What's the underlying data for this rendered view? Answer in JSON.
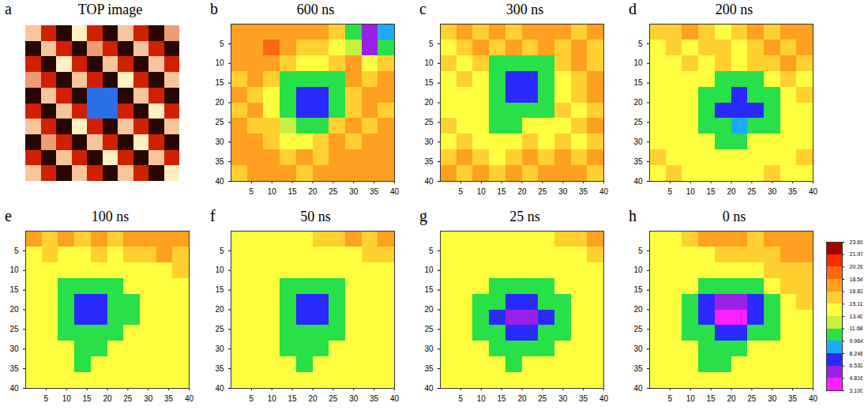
{
  "chart_data": [
    {
      "label": "a",
      "title": "TOP image",
      "type": "image",
      "tick_labels": false,
      "cells": [
        [
          0.9,
          0.5,
          0.1,
          1.0,
          0.5,
          0.1,
          0.9,
          0.5,
          0.1,
          0.8
        ],
        [
          0.1,
          0.9,
          0.5,
          0.1,
          0.8,
          0.5,
          0.1,
          0.9,
          0.5,
          0.1
        ],
        [
          0.5,
          0.1,
          1.0,
          0.5,
          0.1,
          0.9,
          0.5,
          0.1,
          0.9,
          0.5
        ],
        [
          0.8,
          0.5,
          0.1,
          0.9,
          0.5,
          0.1,
          1.0,
          0.5,
          0.1,
          0.9
        ],
        [
          0.1,
          0.9,
          0.5,
          0.1,
          -1,
          -1,
          0.1,
          0.9,
          0.5,
          0.1
        ],
        [
          0.5,
          0.1,
          0.9,
          0.5,
          -1,
          -1,
          0.5,
          0.1,
          1.0,
          0.5
        ],
        [
          0.9,
          0.5,
          0.1,
          1.0,
          0.5,
          0.1,
          0.9,
          0.5,
          0.1,
          0.9
        ],
        [
          0.1,
          0.8,
          0.5,
          0.1,
          0.9,
          0.5,
          0.1,
          1.0,
          0.5,
          0.1
        ],
        [
          0.5,
          0.1,
          0.9,
          0.5,
          0.1,
          1.0,
          0.5,
          0.1,
          0.9,
          0.5
        ],
        [
          0.9,
          0.5,
          0.1,
          0.9,
          0.5,
          0.1,
          0.9,
          0.5,
          0.1,
          1.0
        ]
      ]
    },
    {
      "label": "b",
      "title": "600 ns",
      "type": "heatmap",
      "xlim": [
        0,
        40
      ],
      "ylim": [
        0,
        40
      ],
      "xticks": [
        5,
        10,
        15,
        20,
        25,
        30,
        35,
        40
      ],
      "yticks": [
        5,
        10,
        15,
        20,
        25,
        30,
        35,
        40
      ],
      "cells": [
        [
          17,
          18,
          17,
          18,
          17,
          17,
          16,
          10,
          5,
          9
        ],
        [
          18,
          17,
          19,
          17,
          16,
          16,
          15,
          12,
          6,
          11
        ],
        [
          17,
          18,
          17,
          16,
          15,
          15,
          16,
          17,
          14,
          16
        ],
        [
          16,
          17,
          16,
          11,
          10,
          10,
          11,
          17,
          16,
          17
        ],
        [
          17,
          16,
          15,
          10,
          7,
          7,
          10,
          16,
          17,
          18
        ],
        [
          16,
          17,
          15,
          10,
          7,
          8,
          11,
          16,
          17,
          16
        ],
        [
          17,
          16,
          16,
          12,
          10,
          11,
          16,
          17,
          16,
          17
        ],
        [
          18,
          17,
          16,
          14,
          14,
          16,
          17,
          16,
          17,
          18
        ],
        [
          17,
          18,
          17,
          16,
          17,
          16,
          17,
          18,
          17,
          17
        ],
        [
          16,
          17,
          18,
          17,
          16,
          17,
          18,
          17,
          18,
          17
        ]
      ]
    },
    {
      "label": "c",
      "title": "300 ns",
      "type": "heatmap",
      "xlim": [
        0,
        40
      ],
      "ylim": [
        0,
        40
      ],
      "xticks": [
        5,
        10,
        15,
        20,
        25,
        30,
        35,
        40
      ],
      "yticks": [
        5,
        10,
        15,
        20,
        25,
        30,
        35,
        40
      ],
      "cells": [
        [
          16,
          17,
          16,
          17,
          16,
          17,
          18,
          17,
          16,
          17
        ],
        [
          15,
          16,
          17,
          16,
          17,
          16,
          17,
          16,
          17,
          16
        ],
        [
          16,
          15,
          16,
          11,
          11,
          11,
          11,
          16,
          17,
          16
        ],
        [
          15,
          16,
          15,
          10,
          7,
          7,
          10,
          15,
          16,
          17
        ],
        [
          14,
          15,
          15,
          10,
          7,
          8,
          10,
          15,
          16,
          17
        ],
        [
          15,
          14,
          15,
          11,
          10,
          10,
          11,
          16,
          15,
          16
        ],
        [
          16,
          15,
          14,
          11,
          11,
          14,
          15,
          15,
          16,
          17
        ],
        [
          15,
          16,
          15,
          14,
          15,
          16,
          15,
          16,
          15,
          16
        ],
        [
          16,
          17,
          16,
          15,
          16,
          17,
          16,
          17,
          16,
          17
        ],
        [
          17,
          16,
          17,
          16,
          17,
          16,
          17,
          18,
          17,
          16
        ]
      ]
    },
    {
      "label": "d",
      "title": "200 ns",
      "type": "heatmap",
      "xlim": [
        0,
        40
      ],
      "ylim": [
        0,
        40
      ],
      "xticks": [
        5,
        10,
        15,
        20,
        25,
        30,
        35,
        40
      ],
      "yticks": [
        5,
        10,
        15,
        20,
        25,
        30,
        35,
        40
      ],
      "cells": [
        [
          16,
          16,
          17,
          16,
          15,
          16,
          17,
          16,
          17,
          17
        ],
        [
          15,
          16,
          15,
          16,
          16,
          15,
          16,
          17,
          16,
          17
        ],
        [
          14,
          15,
          16,
          15,
          16,
          15,
          16,
          16,
          17,
          16
        ],
        [
          15,
          14,
          15,
          15,
          11,
          11,
          11,
          15,
          16,
          15
        ],
        [
          14,
          15,
          14,
          11,
          10,
          7,
          10,
          11,
          15,
          16
        ],
        [
          15,
          14,
          15,
          11,
          7,
          7,
          8,
          11,
          15,
          14
        ],
        [
          14,
          15,
          14,
          11,
          10,
          9,
          10,
          11,
          14,
          15
        ],
        [
          15,
          14,
          15,
          14,
          11,
          11,
          14,
          15,
          14,
          15
        ],
        [
          16,
          15,
          14,
          15,
          14,
          15,
          15,
          14,
          15,
          16
        ],
        [
          15,
          16,
          15,
          14,
          15,
          14,
          15,
          16,
          15,
          15
        ]
      ]
    },
    {
      "label": "e",
      "title": "100 ns",
      "type": "heatmap",
      "xlim": [
        0,
        40
      ],
      "ylim": [
        0,
        40
      ],
      "xticks": [
        5,
        10,
        15,
        20,
        25,
        30,
        35,
        40
      ],
      "yticks": [
        5,
        10,
        15,
        20,
        25,
        30,
        35,
        40
      ],
      "cells": [
        [
          17,
          16,
          17,
          16,
          17,
          16,
          17,
          18,
          17,
          17
        ],
        [
          15,
          16,
          15,
          15,
          16,
          15,
          16,
          16,
          17,
          16
        ],
        [
          14,
          14,
          14,
          14,
          14,
          14,
          14,
          15,
          15,
          16
        ],
        [
          14,
          14,
          11,
          11,
          11,
          11,
          14,
          14,
          14,
          15
        ],
        [
          14,
          14,
          11,
          7,
          7,
          10,
          11,
          14,
          14,
          14
        ],
        [
          14,
          14,
          11,
          7,
          7,
          10,
          11,
          14,
          14,
          14
        ],
        [
          14,
          14,
          11,
          10,
          10,
          11,
          14,
          14,
          14,
          15
        ],
        [
          14,
          14,
          14,
          11,
          11,
          14,
          14,
          14,
          15,
          14
        ],
        [
          15,
          14,
          14,
          11,
          14,
          14,
          14,
          15,
          14,
          15
        ],
        [
          14,
          14,
          14,
          14,
          14,
          14,
          15,
          14,
          14,
          14
        ]
      ]
    },
    {
      "label": "f",
      "title": "50 ns",
      "type": "heatmap",
      "xlim": [
        0,
        40
      ],
      "ylim": [
        0,
        40
      ],
      "xticks": [
        5,
        10,
        15,
        20,
        25,
        30,
        35,
        40
      ],
      "yticks": [
        5,
        10,
        15,
        20,
        25,
        30,
        35,
        40
      ],
      "cells": [
        [
          14,
          14,
          14,
          15,
          14,
          16,
          16,
          17,
          16,
          17
        ],
        [
          14,
          14,
          14,
          14,
          14,
          14,
          14,
          15,
          16,
          16
        ],
        [
          14,
          14,
          14,
          14,
          14,
          14,
          14,
          14,
          14,
          15
        ],
        [
          14,
          14,
          14,
          11,
          11,
          11,
          11,
          14,
          14,
          14
        ],
        [
          14,
          14,
          14,
          11,
          7,
          7,
          11,
          14,
          14,
          14
        ],
        [
          14,
          14,
          14,
          11,
          7,
          8,
          11,
          14,
          14,
          14
        ],
        [
          14,
          14,
          14,
          11,
          10,
          10,
          11,
          14,
          14,
          14
        ],
        [
          14,
          14,
          14,
          11,
          11,
          11,
          14,
          14,
          14,
          14
        ],
        [
          14,
          14,
          14,
          14,
          11,
          14,
          14,
          14,
          14,
          14
        ],
        [
          14,
          14,
          14,
          14,
          14,
          14,
          14,
          14,
          14,
          14
        ]
      ]
    },
    {
      "label": "g",
      "title": "25 ns",
      "type": "heatmap",
      "xlim": [
        0,
        40
      ],
      "ylim": [
        0,
        40
      ],
      "xticks": [
        5,
        10,
        15,
        20,
        25,
        30,
        35,
        40
      ],
      "yticks": [
        5,
        10,
        15,
        20,
        25,
        30,
        35,
        40
      ],
      "cells": [
        [
          14,
          14,
          14,
          14,
          14,
          14,
          15,
          16,
          16,
          17
        ],
        [
          14,
          14,
          14,
          14,
          14,
          14,
          14,
          15,
          15,
          16
        ],
        [
          14,
          14,
          14,
          14,
          14,
          14,
          14,
          14,
          14,
          15
        ],
        [
          14,
          14,
          14,
          11,
          11,
          11,
          11,
          14,
          14,
          14
        ],
        [
          14,
          14,
          11,
          10,
          7,
          7,
          10,
          11,
          14,
          14
        ],
        [
          14,
          14,
          11,
          7,
          5,
          6,
          7,
          11,
          14,
          14
        ],
        [
          14,
          14,
          11,
          10,
          7,
          7,
          10,
          11,
          14,
          14
        ],
        [
          14,
          14,
          14,
          11,
          11,
          11,
          11,
          14,
          14,
          14
        ],
        [
          14,
          14,
          14,
          14,
          11,
          14,
          14,
          14,
          14,
          14
        ],
        [
          14,
          14,
          14,
          14,
          14,
          14,
          14,
          14,
          14,
          14
        ]
      ]
    },
    {
      "label": "h",
      "title": "0 ns",
      "type": "heatmap",
      "xlim": [
        0,
        40
      ],
      "ylim": [
        0,
        40
      ],
      "xticks": [
        5,
        10,
        15,
        20,
        25,
        30,
        35,
        40
      ],
      "yticks": [
        5,
        10,
        15,
        20,
        25,
        30,
        35,
        40
      ],
      "cells": [
        [
          15,
          15,
          16,
          17,
          17,
          17,
          16,
          17,
          17,
          17
        ],
        [
          14,
          14,
          15,
          15,
          16,
          16,
          16,
          16,
          17,
          17
        ],
        [
          14,
          14,
          14,
          14,
          14,
          15,
          15,
          16,
          16,
          16
        ],
        [
          14,
          14,
          14,
          11,
          10,
          10,
          11,
          14,
          16,
          16
        ],
        [
          14,
          14,
          11,
          7,
          5,
          5,
          7,
          11,
          14,
          16
        ],
        [
          14,
          14,
          11,
          7,
          4,
          4,
          7,
          11,
          14,
          15
        ],
        [
          14,
          14,
          11,
          10,
          7,
          7,
          10,
          11,
          14,
          15
        ],
        [
          14,
          14,
          14,
          11,
          11,
          11,
          14,
          14,
          14,
          14
        ],
        [
          14,
          14,
          14,
          11,
          11,
          14,
          14,
          14,
          15,
          14
        ],
        [
          14,
          14,
          14,
          14,
          14,
          14,
          14,
          14,
          14,
          14
        ]
      ]
    }
  ],
  "colorbar": {
    "range": [
      3.1,
      23.69
    ],
    "ticks": [
      {
        "value": 3.1,
        "label": "3.100"
      },
      4.816,
      6.532,
      8.248,
      9.964,
      11.68,
      {
        "value": 13.4,
        "label": "13.40"
      },
      15.11,
      16.83,
      18.54,
      20.26,
      21.97,
      23.69
    ]
  }
}
